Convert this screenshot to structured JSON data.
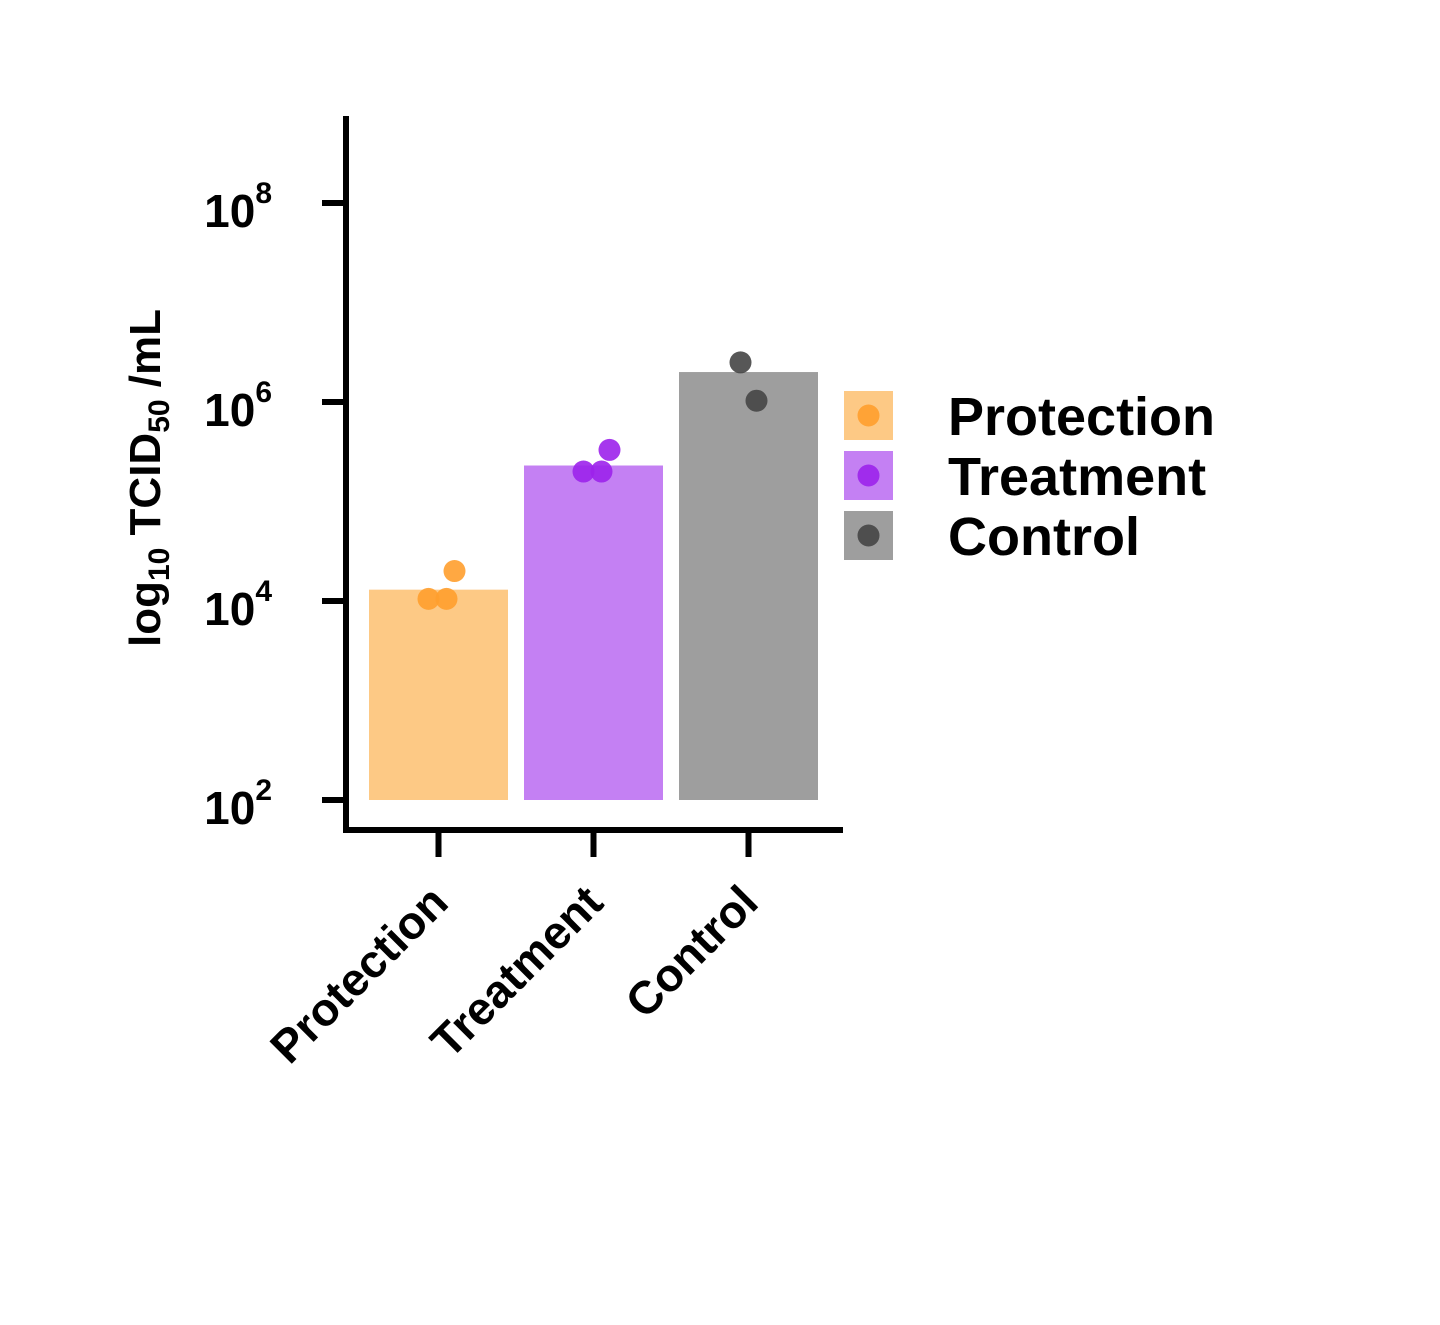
{
  "chart_data": {
    "type": "bar",
    "title": "",
    "xlabel": "",
    "ylabel": {
      "pre": "log",
      "pre_sub": "10",
      "mid": " TCID",
      "mid_sub": "50",
      "post": " /mL"
    },
    "yscale": "log",
    "ylim": [
      50,
      600000000
    ],
    "yticks": [
      {
        "value": 100,
        "base": "10",
        "exp": "2"
      },
      {
        "value": 10000,
        "base": "10",
        "exp": "4"
      },
      {
        "value": 1000000,
        "base": "10",
        "exp": "6"
      },
      {
        "value": 100000000,
        "base": "10",
        "exp": "8"
      }
    ],
    "grid": false,
    "legend_position": "right",
    "categories": [
      "Protection",
      "Treatment",
      "Control"
    ],
    "series": [
      {
        "name": "Protection",
        "value": 13000,
        "points": [
          10500,
          10500,
          20000
        ],
        "bar_color": "#FDC985",
        "point_color": "#FF9F2E"
      },
      {
        "name": "Treatment",
        "value": 230000,
        "points": [
          200000,
          200000,
          330000
        ],
        "bar_color": "#C480F3",
        "point_color": "#9C22EB"
      },
      {
        "name": "Control",
        "value": 2000000,
        "points": [
          2500000,
          1030000
        ],
        "bar_color": "#9E9E9E",
        "point_color": "#454545"
      }
    ]
  }
}
